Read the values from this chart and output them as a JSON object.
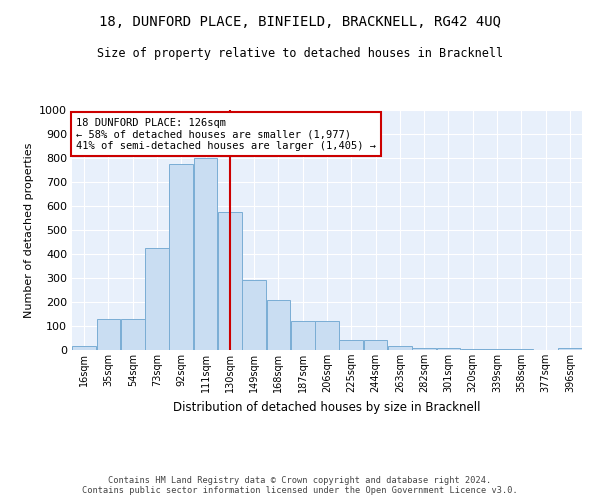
{
  "title_line1": "18, DUNFORD PLACE, BINFIELD, BRACKNELL, RG42 4UQ",
  "title_line2": "Size of property relative to detached houses in Bracknell",
  "xlabel": "Distribution of detached houses by size in Bracknell",
  "ylabel": "Number of detached properties",
  "categories": [
    "16sqm",
    "35sqm",
    "54sqm",
    "73sqm",
    "92sqm",
    "111sqm",
    "130sqm",
    "149sqm",
    "168sqm",
    "187sqm",
    "206sqm",
    "225sqm",
    "244sqm",
    "263sqm",
    "282sqm",
    "301sqm",
    "320sqm",
    "339sqm",
    "358sqm",
    "377sqm",
    "396sqm"
  ],
  "values": [
    18,
    130,
    130,
    425,
    775,
    800,
    575,
    290,
    210,
    120,
    120,
    40,
    40,
    15,
    10,
    10,
    5,
    5,
    5,
    0,
    10
  ],
  "bar_color": "#c9ddf2",
  "bar_edge_color": "#7aadd4",
  "annotation_text": "18 DUNFORD PLACE: 126sqm\n← 58% of detached houses are smaller (1,977)\n41% of semi-detached houses are larger (1,405) →",
  "annotation_box_color": "#ffffff",
  "annotation_border_color": "#cc0000",
  "vline_color": "#cc0000",
  "background_color": "#e8f0fb",
  "grid_color": "#ffffff",
  "footer_text": "Contains HM Land Registry data © Crown copyright and database right 2024.\nContains public sector information licensed under the Open Government Licence v3.0.",
  "ylim": [
    0,
    1000
  ],
  "yticks": [
    0,
    100,
    200,
    300,
    400,
    500,
    600,
    700,
    800,
    900,
    1000
  ],
  "bin_edges": [
    7,
    26,
    45,
    64,
    83,
    102,
    121,
    140,
    159,
    178,
    197,
    216,
    235,
    254,
    273,
    292,
    311,
    330,
    349,
    368,
    387,
    406
  ],
  "vline_x": 130.5
}
